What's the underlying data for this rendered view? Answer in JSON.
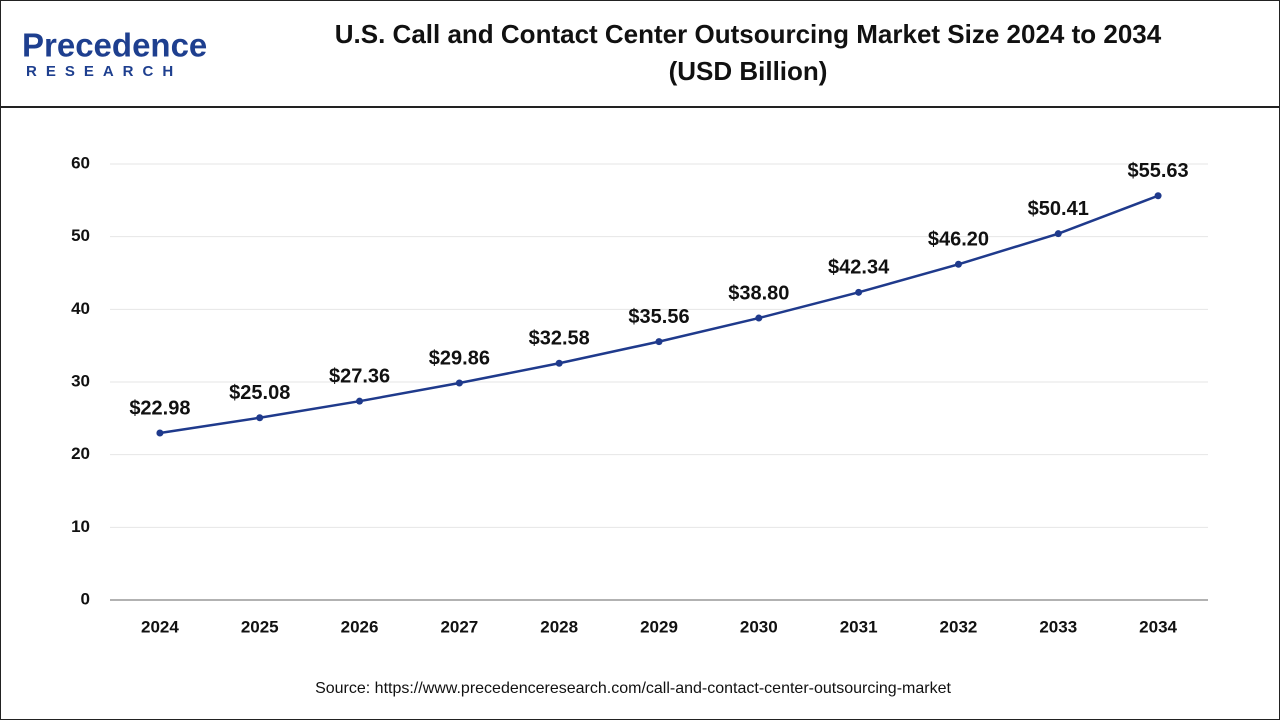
{
  "logo": {
    "name": "Precedence",
    "tagline": "RESEARCH"
  },
  "chart_data": {
    "type": "line",
    "title": "U.S. Call and Contact Center Outsourcing Market Size 2024 to 2034",
    "subtitle": "(USD Billion)",
    "categories": [
      "2024",
      "2025",
      "2026",
      "2027",
      "2028",
      "2029",
      "2030",
      "2031",
      "2032",
      "2033",
      "2034"
    ],
    "values": [
      22.98,
      25.08,
      27.36,
      29.86,
      32.58,
      35.56,
      38.8,
      42.34,
      46.2,
      50.41,
      55.63
    ],
    "value_labels": [
      "$22.98",
      "$25.08",
      "$27.36",
      "$29.86",
      "$32.58",
      "$35.56",
      "$38.80",
      "$42.34",
      "$46.20",
      "$50.41",
      "$55.63"
    ],
    "color": "#1f3a8c",
    "ylim": [
      0,
      60
    ],
    "yticks": [
      0,
      10,
      20,
      30,
      40,
      50,
      60
    ],
    "grid": true,
    "source": "Source: https://www.precedenceresearch.com/call-and-contact-center-outsourcing-market"
  }
}
